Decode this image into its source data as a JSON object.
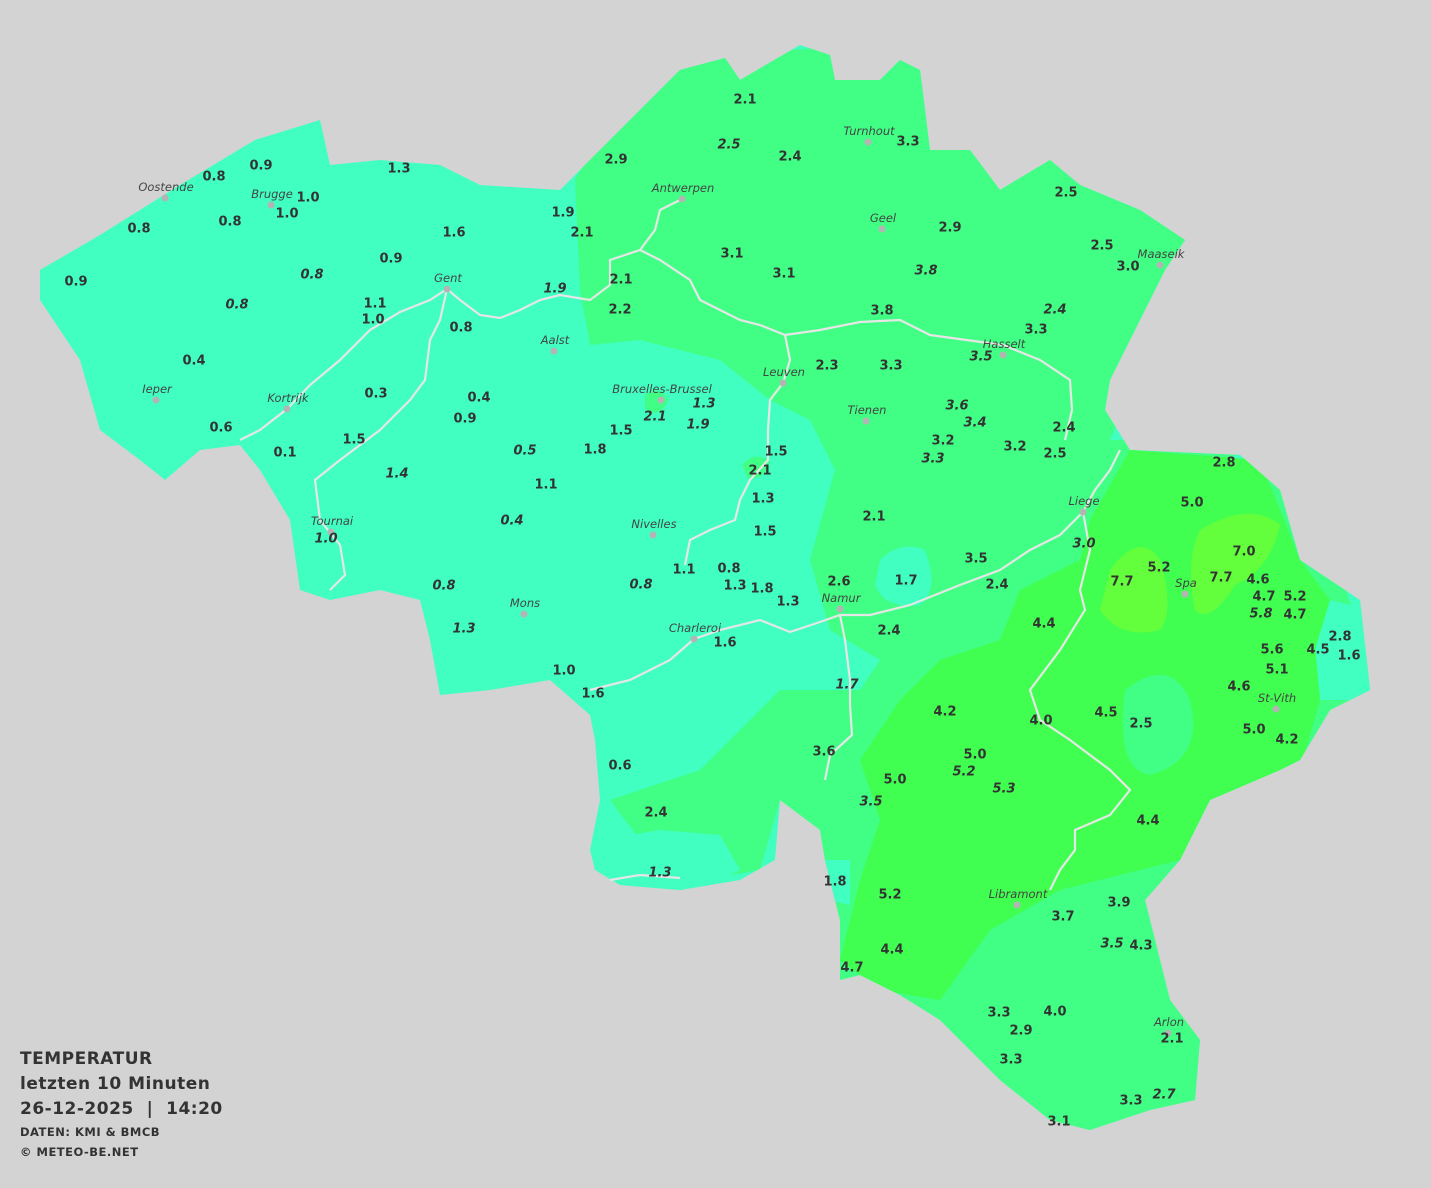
{
  "legend": {
    "title": "TEMPERATUR",
    "period": "letzten 10 Minuten",
    "datetime": "26-12-2025  |  14:20",
    "source": "DATEN: KMI & BMCB",
    "copyright": "© METEO-BE.NET"
  },
  "colors": {
    "background": "#d3d3d3",
    "cold": "#40ffc0",
    "mild": "#40ff84",
    "warm": "#40ff50",
    "warmest": "#64ff3c",
    "rivers": "#e6e6e6",
    "city_dot": "#b4b4b4"
  },
  "cities": [
    "Oostende",
    "Brugge",
    "Gent",
    "Antwerpen",
    "Turnhout",
    "Geel",
    "Maaseik",
    "Aalst",
    "Ieper",
    "Kortrijk",
    "Hasselt",
    "Leuven",
    "Bruxelles-Brussel",
    "Tienen",
    "Liege",
    "Tournai",
    "Nivelles",
    "Spa",
    "Namur",
    "Mons",
    "Charleroi",
    "St-Vith",
    "Libramont",
    "Arlon"
  ],
  "stations": [
    "2.1",
    "2.5",
    "2.4",
    "3.3",
    "2.9",
    "1.3",
    "0.9",
    "0.8",
    "1.0",
    "1.0",
    "0.8",
    "0.8",
    "1.9",
    "2.1",
    "1.6",
    "2.5",
    "2.9",
    "2.5",
    "3.0",
    "3.1",
    "3.1",
    "3.8",
    "0.9",
    "0.8",
    "0.9",
    "2.1",
    "1.9",
    "0.8",
    "1.1",
    "1.0",
    "2.2",
    "3.8",
    "2.4",
    "0.8",
    "3.3",
    "3.5",
    "2.3",
    "0.4",
    "3.3",
    "0.3",
    "0.4",
    "1.3",
    "2.1",
    "1.9",
    "0.9",
    "3.6",
    "3.4",
    "0.6",
    "1.5",
    "1.8",
    "1.5",
    "3.2",
    "3.3",
    "3.2",
    "2.4",
    "2.5",
    "1.5",
    "0.1",
    "0.5",
    "2.1",
    "1.4",
    "1.1",
    "1.3",
    "2.8",
    "5.0",
    "0.4",
    "2.1",
    "1.5",
    "1.0",
    "3.0",
    "7.0",
    "3.5",
    "1.1",
    "0.8",
    "1.7",
    "7.7",
    "5.2",
    "7.7",
    "4.6",
    "0.8",
    "0.8",
    "1.3",
    "1.8",
    "2.6",
    "2.4",
    "4.7",
    "5.2",
    "5.8",
    "4.7",
    "1.3",
    "1.3",
    "2.4",
    "4.4",
    "1.6",
    "2.8",
    "5.6",
    "4.5",
    "1.6",
    "1.0",
    "5.1",
    "1.7",
    "4.6",
    "1.6",
    "4.2",
    "4.0",
    "4.5",
    "2.5",
    "5.0",
    "4.2",
    "3.6",
    "5.0",
    "5.2",
    "0.6",
    "5.0",
    "5.3",
    "3.5",
    "2.4",
    "4.4",
    "1.3",
    "1.8",
    "5.2",
    "3.7",
    "3.9",
    "3.5",
    "4.3",
    "4.4",
    "4.7",
    "3.3",
    "4.0",
    "2.9",
    "2.1",
    "3.3",
    "2.7",
    "3.3",
    "3.1"
  ]
}
